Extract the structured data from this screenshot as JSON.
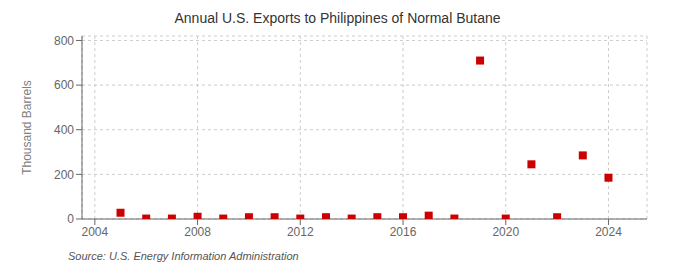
{
  "chart_data": {
    "type": "scatter",
    "title": "Annual U.S. Exports to Philippines of Normal Butane",
    "ylabel": "Thousand Barrels",
    "annotations": [
      "Source: U.S. Energy Information Administration"
    ],
    "x": [
      2005,
      2006,
      2007,
      2008,
      2009,
      2010,
      2011,
      2012,
      2013,
      2014,
      2015,
      2016,
      2017,
      2018,
      2019,
      2020,
      2021,
      2022,
      2023,
      2024
    ],
    "values": [
      28,
      2,
      2,
      10,
      2,
      8,
      8,
      2,
      8,
      2,
      8,
      8,
      15,
      2,
      710,
      2,
      245,
      8,
      285,
      185
    ],
    "color": "#cc0000",
    "marker": "square",
    "xlim": [
      2003.5,
      2025.5
    ],
    "ylim": [
      0,
      820
    ],
    "xticks": [
      2004,
      2008,
      2012,
      2016,
      2020,
      2024
    ],
    "yticks": [
      0,
      200,
      400,
      600,
      800
    ],
    "grid": true
  }
}
